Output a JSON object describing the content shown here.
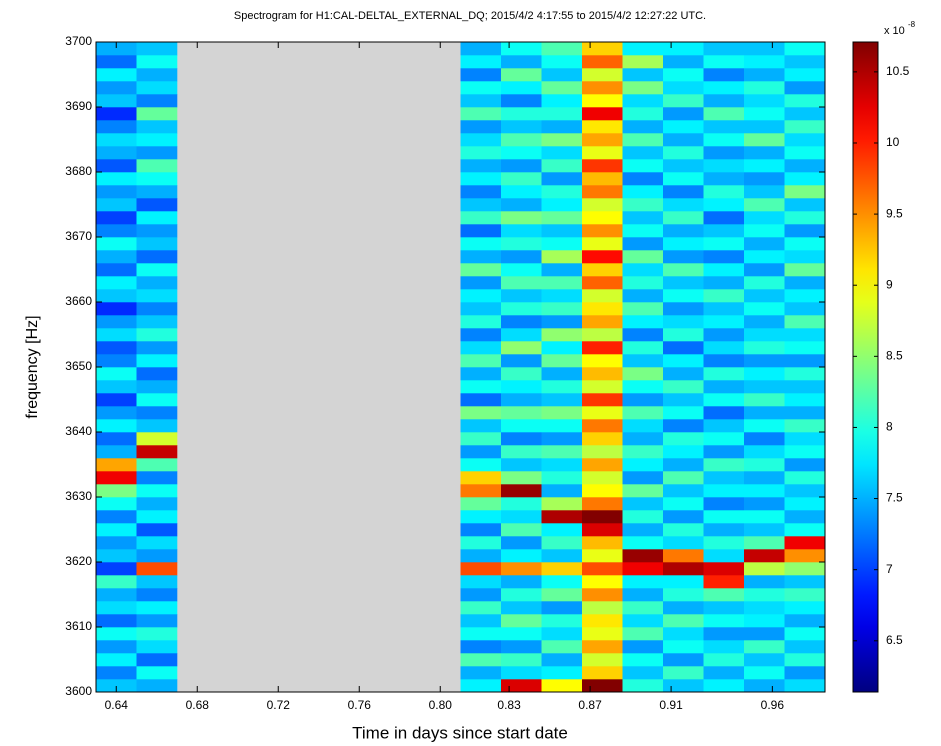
{
  "chart_data": {
    "type": "heatmap",
    "title": "Spectrogram for H1:CAL-DELTAL_EXTERNAL_DQ;  2015/4/2 4:17:55 to 2015/4/2 12:27:22 UTC.",
    "xlabel": "Time in days since start date",
    "ylabel": "frequency [Hz]",
    "colorbar_label": "x 10",
    "colorbar_exponent": "-8",
    "colormap": "jet",
    "xlim": [
      0.63,
      0.99
    ],
    "ylim": [
      3600,
      3700
    ],
    "clim": [
      6.14,
      10.71
    ],
    "xticks": [
      {
        "value": 0.64,
        "label": "0.64"
      },
      {
        "value": 0.68,
        "label": "0.68"
      },
      {
        "value": 0.72,
        "label": "0.72"
      },
      {
        "value": 0.76,
        "label": "0.76"
      },
      {
        "value": 0.8,
        "label": "0.80"
      },
      {
        "value": 0.834,
        "label": "0.83"
      },
      {
        "value": 0.874,
        "label": "0.87"
      },
      {
        "value": 0.914,
        "label": "0.91"
      },
      {
        "value": 0.964,
        "label": "0.96"
      }
    ],
    "yticks": [
      3600,
      3610,
      3620,
      3630,
      3640,
      3650,
      3660,
      3670,
      3680,
      3690,
      3700
    ],
    "cticks": [
      6.5,
      7,
      7.5,
      8,
      8.5,
      9,
      9.5,
      10,
      10.5
    ],
    "x_bins": [
      0.63,
      0.65,
      0.67,
      0.69,
      0.71,
      0.73,
      0.75,
      0.77,
      0.79,
      0.81,
      0.83,
      0.85,
      0.87,
      0.89,
      0.91,
      0.93,
      0.95,
      0.97,
      0.99
    ],
    "y_bins": [
      3600,
      3602,
      3604,
      3606,
      3608,
      3610,
      3612,
      3614,
      3616,
      3618,
      3620,
      3622,
      3624,
      3626,
      3628,
      3630,
      3632,
      3634,
      3636,
      3638,
      3640,
      3642,
      3644,
      3646,
      3648,
      3650,
      3652,
      3654,
      3656,
      3658,
      3660,
      3662,
      3664,
      3666,
      3668,
      3670,
      3672,
      3674,
      3676,
      3678,
      3680,
      3682,
      3684,
      3686,
      3688,
      3690,
      3692,
      3694,
      3696,
      3698,
      3700
    ],
    "z": [
      [
        7.6,
        7.3,
        7.8,
        7.4,
        7.9,
        7.2,
        7.7,
        7.5,
        8.1,
        7.0,
        7.6,
        7.4,
        7.8,
        7.3,
        7.9,
        8.4,
        10.2,
        9.4,
        7.5,
        7.2,
        7.8,
        7.4,
        7.0,
        7.6,
        7.9,
        7.3,
        7.1,
        7.7,
        7.4,
        6.9,
        7.6,
        7.8,
        7.2,
        7.5,
        7.9,
        7.3,
        7.0,
        7.6,
        7.4,
        7.8,
        7.1,
        7.5,
        7.7,
        7.3,
        6.9,
        7.6,
        7.4,
        7.8,
        7.2,
        7.5
      ],
      [
        7.5,
        7.9,
        7.2,
        7.7,
        8.0,
        7.4,
        7.8,
        7.3,
        7.6,
        9.8,
        7.4,
        7.7,
        7.1,
        7.8,
        7.5,
        7.9,
        7.3,
        8.2,
        10.4,
        8.8,
        7.6,
        7.3,
        7.9,
        7.5,
        7.2,
        7.8,
        7.4,
        8.0,
        7.6,
        7.3,
        7.7,
        7.5,
        7.9,
        7.2,
        7.6,
        7.4,
        7.8,
        7.1,
        7.5,
        7.9,
        8.2,
        7.4,
        7.8,
        7.6,
        8.3,
        7.3,
        7.7,
        7.5,
        7.9,
        7.6
      ],
      null,
      null,
      null,
      null,
      null,
      null,
      null,
      [
        7.8,
        7.5,
        8.2,
        7.3,
        7.9,
        7.6,
        8.1,
        7.4,
        7.7,
        9.8,
        7.5,
        8.0,
        7.3,
        7.8,
        8.3,
        9.6,
        9.2,
        7.9,
        7.4,
        8.1,
        7.6,
        8.4,
        7.2,
        7.9,
        7.5,
        8.2,
        7.7,
        7.3,
        8.0,
        7.6,
        7.8,
        7.4,
        8.3,
        7.5,
        7.9,
        7.2,
        8.1,
        7.6,
        7.3,
        7.8,
        7.5,
        8.0,
        7.7,
        7.4,
        8.2,
        7.6,
        7.9,
        7.3,
        7.8,
        7.5
      ],
      [
        10.3,
        7.7,
        8.1,
        7.4,
        7.9,
        8.3,
        7.6,
        8.0,
        7.5,
        9.5,
        7.8,
        7.4,
        8.2,
        7.7,
        8.0,
        10.6,
        8.4,
        7.6,
        8.1,
        7.3,
        7.9,
        8.3,
        7.5,
        7.8,
        8.1,
        7.4,
        8.5,
        7.7,
        7.3,
        8.0,
        7.6,
        8.2,
        7.9,
        7.4,
        8.0,
        7.7,
        8.4,
        7.5,
        7.8,
        8.1,
        7.4,
        7.9,
        8.2,
        7.6,
        8.0,
        7.3,
        7.8,
        8.3,
        7.5,
        7.9
      ],
      [
        9.0,
        7.8,
        7.5,
        8.2,
        7.7,
        8.0,
        7.4,
        8.3,
        7.9,
        9.2,
        7.6,
        8.1,
        7.8,
        10.5,
        8.6,
        7.5,
        8.0,
        7.7,
        8.2,
        7.4,
        7.9,
        8.4,
        7.6,
        8.0,
        7.5,
        8.3,
        7.8,
        8.5,
        7.4,
        8.1,
        7.7,
        8.2,
        7.5,
        8.6,
        7.9,
        7.6,
        8.3,
        7.8,
        8.0,
        7.4,
        8.1,
        7.7,
        8.4,
        7.5,
        8.0,
        7.8,
        8.3,
        7.6,
        7.9,
        8.2
      ],
      [
        10.7,
        9.2,
        8.8,
        9.4,
        8.9,
        9.1,
        8.7,
        9.5,
        9.0,
        9.8,
        8.9,
        9.3,
        10.3,
        10.7,
        9.6,
        9.0,
        8.8,
        9.4,
        8.7,
        9.2,
        9.6,
        8.9,
        9.9,
        8.8,
        9.3,
        9.0,
        10.0,
        8.7,
        9.4,
        9.1,
        8.8,
        9.7,
        9.2,
        10.1,
        8.9,
        9.5,
        9.0,
        8.8,
        9.6,
        9.3,
        9.9,
        8.9,
        9.4,
        9.1,
        10.2,
        9.0,
        9.5,
        8.8,
        9.7,
        9.2
      ],
      [
        8.0,
        7.6,
        7.9,
        7.4,
        8.2,
        7.7,
        8.1,
        7.5,
        7.8,
        10.2,
        10.6,
        7.9,
        7.5,
        8.0,
        7.6,
        8.3,
        7.4,
        7.8,
        8.1,
        7.5,
        7.7,
        8.2,
        7.4,
        7.9,
        8.4,
        7.6,
        8.0,
        7.3,
        7.8,
        8.2,
        7.5,
        8.0,
        7.7,
        8.3,
        7.4,
        7.9,
        7.6,
        8.1,
        7.8,
        7.3,
        7.9,
        7.6,
        8.2,
        7.5,
        8.0,
        7.7,
        8.4,
        7.6,
        8.6,
        7.8
      ],
      [
        7.6,
        8.1,
        7.4,
        7.9,
        7.7,
        8.2,
        7.5,
        8.0,
        7.8,
        10.5,
        9.6,
        7.7,
        8.0,
        7.4,
        7.9,
        7.6,
        8.2,
        7.5,
        7.8,
        8.0,
        7.3,
        7.9,
        7.6,
        8.1,
        7.5,
        7.8,
        7.2,
        8.0,
        7.7,
        7.4,
        7.9,
        7.6,
        8.2,
        7.4,
        7.8,
        7.5,
        8.1,
        7.7,
        7.3,
        7.9,
        7.6,
        8.0,
        7.5,
        7.8,
        7.4,
        8.1,
        7.7,
        7.9,
        7.5,
        7.8
      ],
      [
        7.8,
        7.5,
        8.0,
        7.7,
        7.4,
        7.9,
        7.6,
        8.2,
        10.0,
        10.3,
        7.7,
        8.0,
        7.5,
        7.9,
        7.3,
        7.8,
        7.6,
        8.1,
        7.4,
        7.9,
        7.6,
        7.2,
        7.9,
        7.5,
        8.0,
        7.3,
        7.7,
        7.4,
        7.8,
        7.6,
        8.1,
        7.5,
        7.8,
        7.3,
        7.9,
        7.6,
        7.2,
        7.8,
        8.0,
        7.5,
        7.7,
        7.4,
        7.9,
        7.6,
        8.2,
        7.5,
        7.8,
        7.3,
        7.9,
        7.6
      ],
      [
        7.5,
        7.9,
        7.6,
        8.1,
        7.4,
        7.8,
        7.7,
        8.0,
        7.5,
        8.7,
        10.4,
        8.2,
        7.6,
        7.9,
        7.4,
        7.8,
        7.5,
        8.0,
        7.7,
        7.3,
        7.9,
        7.5,
        8.1,
        7.6,
        7.8,
        7.4,
        8.0,
        7.7,
        7.5,
        7.9,
        7.6,
        8.0,
        7.4,
        7.8,
        7.5,
        7.9,
        7.7,
        8.2,
        7.6,
        7.4,
        7.8,
        7.5,
        8.3,
        7.6,
        7.9,
        7.7,
        8.0,
        7.5,
        7.8,
        7.6
      ],
      [
        7.7,
        7.4,
        8.0,
        7.6,
        7.9,
        7.5,
        7.8,
        8.1,
        7.6,
        8.5,
        9.5,
        10.2,
        7.9,
        7.5,
        7.8,
        7.6,
        8.0,
        7.4,
        7.9,
        7.7,
        8.1,
        7.5,
        7.8,
        7.6,
        8.0,
        7.4,
        7.9,
        7.7,
        8.2,
        7.6,
        7.8,
        7.5,
        8.3,
        7.7,
        7.9,
        7.4,
        8.0,
        7.6,
        8.4,
        7.8,
        7.5,
        7.9,
        7.7,
        8.1,
        7.6,
        8.0,
        7.4,
        7.8,
        7.6,
        7.9
      ]
    ]
  }
}
